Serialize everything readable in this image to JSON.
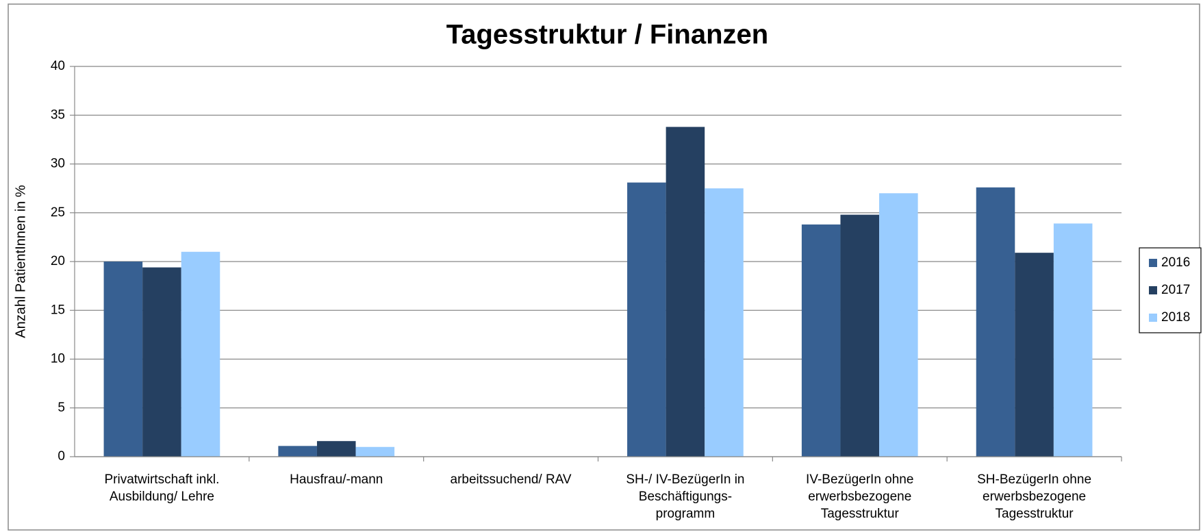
{
  "chart_data": {
    "type": "bar",
    "title": "Tagesstruktur / Finanzen",
    "y_label": "Anzahl PatientInnen in %",
    "categories": [
      "Privatwirtschaft inkl.\nAusbildung/ Lehre",
      "Hausfrau/-mann",
      "arbeitssuchend/ RAV",
      "SH-/ IV-BezügerIn in\nBeschäftigungs-\nprogramm",
      "IV-BezügerIn ohne\nerwerbsbezogene\nTagesstruktur",
      "SH-BezügerIn ohne\nerwerbsbezogene\nTagesstruktur"
    ],
    "series": [
      {
        "name": "2016",
        "color": "#376092",
        "values": [
          20,
          1.1,
          0,
          28.1,
          23.8,
          27.6
        ]
      },
      {
        "name": "2017",
        "color": "#254061",
        "values": [
          19.4,
          1.6,
          0,
          33.8,
          24.8,
          20.9
        ]
      },
      {
        "name": "2018",
        "color": "#99ccff",
        "values": [
          21,
          1.0,
          0,
          27.5,
          27.0,
          23.9
        ]
      }
    ],
    "ylim": [
      0,
      40
    ],
    "yticks": [
      0,
      5,
      10,
      15,
      20,
      25,
      30,
      35,
      40
    ],
    "grid": true,
    "legend": "right"
  }
}
